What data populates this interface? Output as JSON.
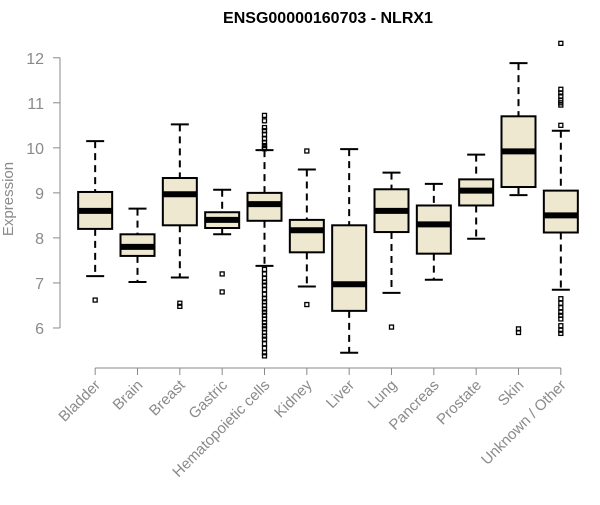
{
  "chart_data": {
    "type": "boxplot",
    "title": "ENSG00000160703 - NLRX1",
    "xlabel": "",
    "ylabel": "Expression",
    "ylim": [
      5.4,
      12.35
    ],
    "yticks": [
      6,
      7,
      8,
      9,
      10,
      11,
      12
    ],
    "colors": {
      "box_fill": "#efe8d0",
      "stroke": "#000000",
      "axis": "#8a8a8a"
    },
    "categories": [
      "Bladder",
      "Brain",
      "Breast",
      "Gastric",
      "Hematopoietic cells",
      "Kidney",
      "Liver",
      "Lung",
      "Pancreas",
      "Prostate",
      "Skin",
      "Unknown / Other"
    ],
    "boxes": [
      {
        "name": "Bladder",
        "whisker_low": 7.15,
        "q1": 8.2,
        "median": 8.6,
        "q3": 9.02,
        "whisker_high": 10.15,
        "outliers": [
          6.62
        ]
      },
      {
        "name": "Brain",
        "whisker_low": 7.02,
        "q1": 7.6,
        "median": 7.8,
        "q3": 8.08,
        "whisker_high": 8.65,
        "outliers": []
      },
      {
        "name": "Breast",
        "whisker_low": 7.12,
        "q1": 8.28,
        "median": 8.97,
        "q3": 9.33,
        "whisker_high": 10.52,
        "outliers": [
          6.48,
          6.55
        ]
      },
      {
        "name": "Gastric",
        "whisker_low": 8.08,
        "q1": 8.22,
        "median": 8.4,
        "q3": 8.57,
        "whisker_high": 9.07,
        "outliers": [
          7.2,
          6.8
        ]
      },
      {
        "name": "Hematopoietic cells",
        "whisker_low": 7.38,
        "q1": 8.38,
        "median": 8.75,
        "q3": 9.0,
        "whisker_high": 9.95,
        "outliers": [
          10.72,
          10.6,
          10.45,
          10.38,
          10.3,
          10.2,
          10.12,
          10.05,
          10.0,
          9.98,
          7.3,
          7.2,
          7.1,
          7.02,
          6.95,
          6.85,
          6.75,
          6.65,
          6.58,
          6.5,
          6.42,
          6.35,
          6.28,
          6.2,
          6.12,
          6.05,
          5.98,
          5.9,
          5.82,
          5.75,
          5.65,
          5.55,
          5.45,
          5.38
        ]
      },
      {
        "name": "Kidney",
        "whisker_low": 6.92,
        "q1": 7.68,
        "median": 8.17,
        "q3": 8.4,
        "whisker_high": 9.52,
        "outliers": [
          9.93,
          6.52
        ]
      },
      {
        "name": "Liver",
        "whisker_low": 5.45,
        "q1": 6.38,
        "median": 6.97,
        "q3": 8.28,
        "whisker_high": 9.97,
        "outliers": []
      },
      {
        "name": "Lung",
        "whisker_low": 6.78,
        "q1": 8.13,
        "median": 8.6,
        "q3": 9.08,
        "whisker_high": 9.45,
        "outliers": [
          6.02
        ]
      },
      {
        "name": "Pancreas",
        "whisker_low": 7.07,
        "q1": 7.65,
        "median": 8.3,
        "q3": 8.72,
        "whisker_high": 9.2,
        "outliers": []
      },
      {
        "name": "Prostate",
        "whisker_low": 7.98,
        "q1": 8.72,
        "median": 9.05,
        "q3": 9.3,
        "whisker_high": 9.85,
        "outliers": []
      },
      {
        "name": "Skin",
        "whisker_low": 8.95,
        "q1": 9.13,
        "median": 9.92,
        "q3": 10.7,
        "whisker_high": 11.88,
        "outliers": [
          5.98,
          5.9
        ]
      },
      {
        "name": "Unknown / Other",
        "whisker_low": 6.85,
        "q1": 8.12,
        "median": 8.5,
        "q3": 9.05,
        "whisker_high": 10.38,
        "outliers": [
          12.32,
          11.3,
          11.22,
          11.15,
          11.05,
          11.0,
          10.95,
          10.5,
          6.65,
          6.55,
          6.45,
          6.35,
          6.28,
          6.2,
          6.05,
          5.95,
          5.88
        ]
      }
    ]
  }
}
